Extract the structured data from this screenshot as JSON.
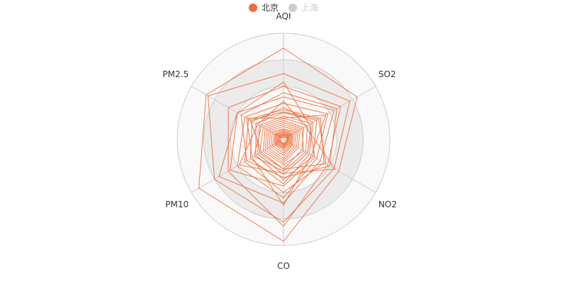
{
  "chart_data": {
    "type": "radar",
    "legend": [
      {
        "name": "北京",
        "color": "#f06d3a",
        "active": true
      },
      {
        "name": "上海",
        "color": "#cccccc",
        "active": false
      }
    ],
    "indicators": [
      "AQI",
      "SO2",
      "NO2",
      "CO",
      "PM10",
      "PM2.5"
    ],
    "split_colors": [
      "#ffffff",
      "#f9f9f9",
      "#ebebeb",
      "#f9f9f9"
    ],
    "series": [
      {
        "name": "北京",
        "color": "#f06d3a",
        "values": [
          [
            0.86,
            0.8,
            0.6,
            0.96,
            0.92,
            0.84
          ],
          [
            0.62,
            0.72,
            0.55,
            0.78,
            0.75,
            0.82
          ],
          [
            0.5,
            0.62,
            0.48,
            0.82,
            0.6,
            0.6
          ],
          [
            0.4,
            0.55,
            0.4,
            0.6,
            0.7,
            0.5
          ],
          [
            0.34,
            0.48,
            0.36,
            0.55,
            0.5,
            0.42
          ],
          [
            0.28,
            0.4,
            0.44,
            0.5,
            0.42,
            0.38
          ],
          [
            0.3,
            0.32,
            0.28,
            0.42,
            0.36,
            0.34
          ],
          [
            0.25,
            0.36,
            0.32,
            0.38,
            0.3,
            0.3
          ],
          [
            0.22,
            0.3,
            0.26,
            0.33,
            0.28,
            0.26
          ],
          [
            0.2,
            0.26,
            0.24,
            0.3,
            0.32,
            0.24
          ],
          [
            0.18,
            0.22,
            0.2,
            0.28,
            0.26,
            0.22
          ],
          [
            0.16,
            0.2,
            0.22,
            0.24,
            0.22,
            0.2
          ],
          [
            0.14,
            0.18,
            0.16,
            0.22,
            0.2,
            0.18
          ],
          [
            0.12,
            0.16,
            0.14,
            0.2,
            0.18,
            0.16
          ],
          [
            0.1,
            0.14,
            0.12,
            0.18,
            0.16,
            0.14
          ],
          [
            0.09,
            0.12,
            0.1,
            0.15,
            0.14,
            0.12
          ],
          [
            0.08,
            0.1,
            0.09,
            0.13,
            0.12,
            0.1
          ],
          [
            0.07,
            0.09,
            0.08,
            0.11,
            0.1,
            0.09
          ],
          [
            0.06,
            0.08,
            0.07,
            0.09,
            0.09,
            0.08
          ],
          [
            0.05,
            0.07,
            0.06,
            0.08,
            0.08,
            0.07
          ],
          [
            0.05,
            0.06,
            0.05,
            0.07,
            0.07,
            0.06
          ],
          [
            0.04,
            0.05,
            0.05,
            0.06,
            0.06,
            0.05
          ],
          [
            0.04,
            0.05,
            0.04,
            0.05,
            0.05,
            0.05
          ],
          [
            0.03,
            0.04,
            0.04,
            0.05,
            0.04,
            0.04
          ],
          [
            0.02,
            0.03,
            0.03,
            0.04,
            0.03,
            0.03
          ],
          [
            0.54,
            0.28,
            0.34,
            0.44,
            0.58,
            0.5
          ],
          [
            0.44,
            0.58,
            0.5,
            0.36,
            0.4,
            0.46
          ],
          [
            0.36,
            0.24,
            0.56,
            0.32,
            0.48,
            0.28
          ],
          [
            0.2,
            0.46,
            0.3,
            0.62,
            0.34,
            0.4
          ],
          [
            0.26,
            0.38,
            0.46,
            0.28,
            0.24,
            0.36
          ]
        ]
      }
    ]
  }
}
